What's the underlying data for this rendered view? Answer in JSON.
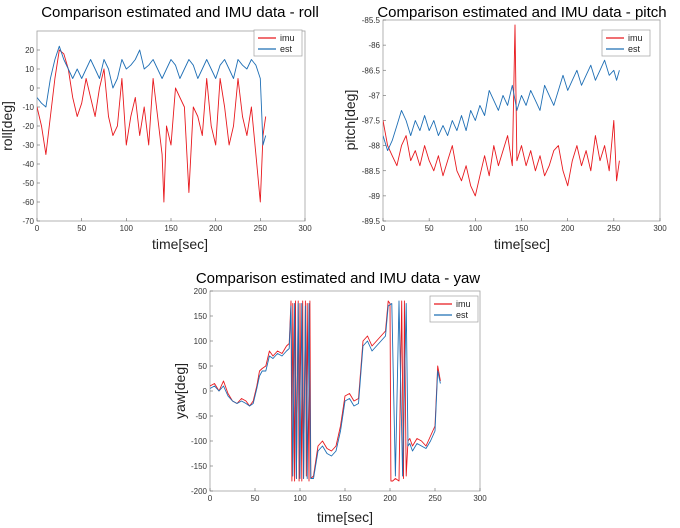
{
  "chart_data": [
    {
      "type": "line",
      "title": "Comparison estimated and IMU data - roll",
      "xlabel": "time[sec]",
      "ylabel": "roll[deg]",
      "xlim": [
        0,
        300
      ],
      "ylim": [
        -70,
        30
      ],
      "xticks": [
        "0",
        "50",
        "100",
        "150",
        "200",
        "250",
        "300"
      ],
      "yticks": [
        "-70",
        "-60",
        "-50",
        "-40",
        "-30",
        "-20",
        "-10",
        "0",
        "10",
        "20"
      ],
      "legend": "top-right",
      "series": [
        {
          "name": "imu",
          "color": "#e8191e",
          "x": [
            0,
            5,
            10,
            15,
            20,
            25,
            30,
            35,
            40,
            45,
            50,
            55,
            60,
            65,
            70,
            75,
            80,
            85,
            90,
            95,
            100,
            105,
            110,
            115,
            120,
            125,
            130,
            135,
            140,
            142,
            145,
            150,
            155,
            160,
            165,
            170,
            175,
            180,
            185,
            190,
            195,
            200,
            205,
            210,
            215,
            220,
            225,
            230,
            235,
            240,
            245,
            250,
            253,
            256
          ],
          "y": [
            -10,
            -20,
            -35,
            -15,
            5,
            20,
            18,
            10,
            -5,
            -15,
            -8,
            5,
            -5,
            -15,
            0,
            10,
            -15,
            -25,
            -20,
            5,
            -30,
            -15,
            -5,
            -25,
            -10,
            -30,
            5,
            -15,
            -35,
            -60,
            -20,
            -30,
            0,
            -5,
            -10,
            -55,
            -10,
            -15,
            -25,
            5,
            -20,
            -30,
            5,
            -10,
            -30,
            -20,
            5,
            -15,
            -25,
            -10,
            -35,
            -60,
            -25,
            -15
          ]
        },
        {
          "name": "est",
          "color": "#1f6fb5",
          "x": [
            0,
            5,
            10,
            15,
            20,
            25,
            30,
            35,
            40,
            45,
            50,
            55,
            60,
            65,
            70,
            75,
            80,
            85,
            90,
            95,
            100,
            105,
            110,
            115,
            120,
            125,
            130,
            135,
            140,
            145,
            150,
            155,
            160,
            165,
            170,
            175,
            180,
            185,
            190,
            195,
            200,
            205,
            210,
            215,
            220,
            225,
            230,
            235,
            240,
            245,
            250,
            253,
            256
          ],
          "y": [
            -5,
            -8,
            -10,
            5,
            15,
            22,
            15,
            10,
            5,
            10,
            5,
            10,
            15,
            10,
            5,
            15,
            10,
            0,
            5,
            15,
            10,
            12,
            15,
            20,
            10,
            12,
            15,
            10,
            5,
            10,
            15,
            12,
            5,
            10,
            15,
            12,
            5,
            10,
            15,
            10,
            5,
            12,
            15,
            10,
            5,
            15,
            12,
            10,
            15,
            12,
            5,
            -30,
            -25
          ]
        }
      ]
    },
    {
      "type": "line",
      "title": "Comparison estimated and IMU data - pitch",
      "xlabel": "time[sec]",
      "ylabel": "pitch[deg]",
      "xlim": [
        0,
        300
      ],
      "ylim": [
        -89.5,
        -85.5
      ],
      "xticks": [
        "0",
        "50",
        "100",
        "150",
        "200",
        "250",
        "300"
      ],
      "yticks": [
        "-89.5",
        "-89",
        "-88.5",
        "-88",
        "-87.5",
        "-87",
        "-86.5",
        "-86",
        "-85.5"
      ],
      "legend": "top-right",
      "series": [
        {
          "name": "imu",
          "color": "#e8191e",
          "x": [
            0,
            5,
            10,
            15,
            20,
            25,
            30,
            35,
            40,
            45,
            50,
            55,
            60,
            65,
            70,
            75,
            80,
            85,
            90,
            95,
            100,
            105,
            110,
            115,
            120,
            125,
            130,
            135,
            140,
            143,
            145,
            150,
            155,
            160,
            165,
            170,
            175,
            180,
            185,
            190,
            195,
            200,
            205,
            210,
            215,
            220,
            225,
            230,
            235,
            240,
            245,
            250,
            253,
            256
          ],
          "y": [
            -87.5,
            -88.0,
            -88.2,
            -88.4,
            -88.0,
            -87.8,
            -88.3,
            -88.1,
            -88.4,
            -88.0,
            -88.3,
            -88.5,
            -88.2,
            -88.6,
            -88.3,
            -88.0,
            -88.5,
            -88.7,
            -88.4,
            -88.8,
            -89.0,
            -88.6,
            -88.2,
            -88.6,
            -88.0,
            -88.4,
            -88.1,
            -87.8,
            -88.4,
            -85.6,
            -88.3,
            -88.0,
            -88.4,
            -88.1,
            -88.5,
            -88.2,
            -88.6,
            -88.4,
            -88.1,
            -88.0,
            -88.5,
            -88.8,
            -88.3,
            -88.0,
            -88.4,
            -88.1,
            -88.5,
            -87.8,
            -88.3,
            -88.0,
            -88.5,
            -87.5,
            -88.7,
            -88.3
          ]
        },
        {
          "name": "est",
          "color": "#1f6fb5",
          "x": [
            0,
            5,
            10,
            15,
            20,
            25,
            30,
            35,
            40,
            45,
            50,
            55,
            60,
            65,
            70,
            75,
            80,
            85,
            90,
            95,
            100,
            105,
            110,
            115,
            120,
            125,
            130,
            135,
            140,
            145,
            150,
            155,
            160,
            165,
            170,
            175,
            180,
            185,
            190,
            195,
            200,
            205,
            210,
            215,
            220,
            225,
            230,
            235,
            240,
            245,
            250,
            253,
            256
          ],
          "y": [
            -87.8,
            -88.1,
            -87.9,
            -87.6,
            -87.3,
            -87.5,
            -87.8,
            -87.5,
            -87.7,
            -87.4,
            -87.7,
            -87.5,
            -87.8,
            -87.6,
            -87.8,
            -87.5,
            -87.7,
            -87.4,
            -87.7,
            -87.3,
            -87.5,
            -87.2,
            -87.4,
            -86.9,
            -87.1,
            -87.3,
            -87.0,
            -87.2,
            -86.8,
            -87.3,
            -87.0,
            -87.2,
            -86.9,
            -87.1,
            -87.3,
            -86.8,
            -87.0,
            -87.2,
            -86.9,
            -86.6,
            -86.9,
            -86.7,
            -86.5,
            -86.8,
            -86.6,
            -86.4,
            -86.7,
            -86.5,
            -86.3,
            -86.6,
            -86.5,
            -86.7,
            -86.5
          ]
        }
      ]
    },
    {
      "type": "line",
      "title": "Comparison estimated and IMU data - yaw",
      "xlabel": "time[sec]",
      "ylabel": "yaw[deg]",
      "xlim": [
        0,
        300
      ],
      "ylim": [
        -200,
        200
      ],
      "xticks": [
        "0",
        "50",
        "100",
        "150",
        "200",
        "250",
        "300"
      ],
      "yticks": [
        "-200",
        "-150",
        "-100",
        "-50",
        "0",
        "50",
        "100",
        "150",
        "200"
      ],
      "legend": "top-right",
      "series": [
        {
          "name": "imu",
          "color": "#e8191e",
          "x": [
            0,
            5,
            10,
            15,
            20,
            25,
            30,
            35,
            40,
            44,
            48,
            52,
            55,
            58,
            62,
            66,
            70,
            75,
            80,
            85,
            88,
            90,
            91,
            92,
            94,
            95,
            96,
            98,
            99,
            100,
            102,
            103,
            104,
            106,
            107,
            108,
            110,
            111,
            112,
            115,
            120,
            125,
            130,
            135,
            140,
            145,
            150,
            155,
            160,
            165,
            170,
            175,
            180,
            185,
            190,
            195,
            198,
            200,
            201,
            203,
            206,
            210,
            213,
            215,
            216,
            218,
            220,
            222,
            225,
            230,
            235,
            240,
            245,
            250,
            253,
            256
          ],
          "y": [
            10,
            15,
            0,
            20,
            -5,
            -20,
            -25,
            -15,
            -20,
            -30,
            -20,
            10,
            40,
            45,
            50,
            80,
            70,
            80,
            75,
            90,
            95,
            180,
            -180,
            175,
            -180,
            180,
            -175,
            180,
            -180,
            175,
            -180,
            180,
            -175,
            180,
            -170,
            175,
            -180,
            180,
            -175,
            -170,
            -110,
            -100,
            -115,
            -120,
            -110,
            -70,
            -10,
            -5,
            -20,
            -15,
            100,
            110,
            90,
            100,
            110,
            120,
            180,
            175,
            -180,
            -180,
            -175,
            -180,
            180,
            -175,
            180,
            -170,
            -100,
            -95,
            -110,
            -95,
            -100,
            -110,
            -90,
            -70,
            50,
            20
          ]
        },
        {
          "name": "est",
          "color": "#1f6fb5",
          "x": [
            0,
            5,
            10,
            15,
            20,
            25,
            30,
            35,
            40,
            44,
            48,
            52,
            55,
            58,
            62,
            66,
            70,
            75,
            80,
            85,
            88,
            90,
            92,
            94,
            96,
            98,
            100,
            102,
            104,
            106,
            108,
            110,
            112,
            115,
            120,
            125,
            130,
            135,
            140,
            145,
            150,
            155,
            160,
            165,
            170,
            175,
            180,
            185,
            190,
            195,
            198,
            202,
            206,
            210,
            214,
            218,
            220,
            222,
            225,
            230,
            235,
            240,
            245,
            250,
            253,
            256
          ],
          "y": [
            5,
            10,
            0,
            10,
            -10,
            -20,
            -25,
            -20,
            -25,
            -30,
            -25,
            5,
            30,
            40,
            40,
            70,
            65,
            75,
            70,
            80,
            85,
            170,
            -170,
            175,
            -175,
            175,
            -175,
            175,
            -175,
            170,
            -175,
            175,
            -175,
            -175,
            -120,
            -110,
            -125,
            -130,
            -120,
            -80,
            -20,
            -15,
            -30,
            -25,
            90,
            100,
            80,
            90,
            100,
            110,
            170,
            175,
            -170,
            180,
            -170,
            175,
            -110,
            -105,
            -120,
            -105,
            -110,
            -115,
            -100,
            -80,
            40,
            15
          ]
        }
      ]
    }
  ]
}
